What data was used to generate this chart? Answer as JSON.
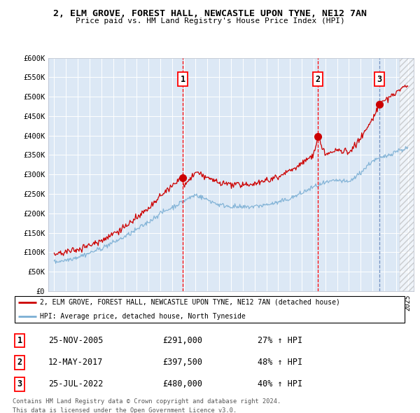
{
  "title1": "2, ELM GROVE, FOREST HALL, NEWCASTLE UPON TYNE, NE12 7AN",
  "title2": "Price paid vs. HM Land Registry's House Price Index (HPI)",
  "ylim": [
    0,
    600000
  ],
  "yticks": [
    0,
    50000,
    100000,
    150000,
    200000,
    250000,
    300000,
    350000,
    400000,
    450000,
    500000,
    550000,
    600000
  ],
  "ytick_labels": [
    "£0",
    "£50K",
    "£100K",
    "£150K",
    "£200K",
    "£250K",
    "£300K",
    "£350K",
    "£400K",
    "£450K",
    "£500K",
    "£550K",
    "£600K"
  ],
  "xlim_start": 1994.5,
  "xlim_end": 2025.5,
  "plot_bg_color": "#dce8f5",
  "red_color": "#cc0000",
  "blue_color": "#7bafd4",
  "red_line_label": "2, ELM GROVE, FOREST HALL, NEWCASTLE UPON TYNE, NE12 7AN (detached house)",
  "blue_line_label": "HPI: Average price, detached house, North Tyneside",
  "transactions": [
    {
      "num": 1,
      "date": "25-NOV-2005",
      "price": 291000,
      "pct": "27%",
      "x": 2005.9
    },
    {
      "num": 2,
      "date": "12-MAY-2017",
      "price": 397500,
      "pct": "48%",
      "x": 2017.37
    },
    {
      "num": 3,
      "date": "25-JUL-2022",
      "price": 480000,
      "pct": "40%",
      "x": 2022.57
    }
  ],
  "hpi_knots_x": [
    1995,
    1996,
    1997,
    1998,
    1999,
    2000,
    2001,
    2002,
    2003,
    2004,
    2005,
    2006,
    2007,
    2008,
    2009,
    2010,
    2011,
    2012,
    2013,
    2014,
    2015,
    2016,
    2017,
    2018,
    2019,
    2020,
    2021,
    2022,
    2023,
    2024,
    2025
  ],
  "hpi_knots_y": [
    75000,
    80000,
    88000,
    98000,
    110000,
    125000,
    140000,
    158000,
    178000,
    200000,
    215000,
    232000,
    248000,
    235000,
    222000,
    218000,
    215000,
    218000,
    222000,
    228000,
    238000,
    252000,
    268000,
    278000,
    285000,
    280000,
    305000,
    335000,
    345000,
    360000,
    368000
  ],
  "red_knots_x": [
    1995,
    1996,
    1997,
    1998,
    1999,
    2000,
    2001,
    2002,
    2003,
    2004,
    2005,
    2005.9,
    2006,
    2007,
    2008,
    2009,
    2010,
    2011,
    2012,
    2013,
    2014,
    2015,
    2016,
    2017,
    2017.37,
    2018,
    2019,
    2020,
    2021,
    2022,
    2022.57,
    2023,
    2024,
    2025
  ],
  "red_knots_y": [
    95000,
    100000,
    108000,
    118000,
    130000,
    148000,
    166000,
    188000,
    212000,
    242000,
    272000,
    291000,
    270000,
    305000,
    292000,
    278000,
    275000,
    272000,
    278000,
    285000,
    295000,
    310000,
    328000,
    350000,
    397500,
    352000,
    362000,
    358000,
    392000,
    442000,
    480000,
    490000,
    510000,
    530000
  ],
  "footer1": "Contains HM Land Registry data © Crown copyright and database right 2024.",
  "footer2": "This data is licensed under the Open Government Licence v3.0."
}
